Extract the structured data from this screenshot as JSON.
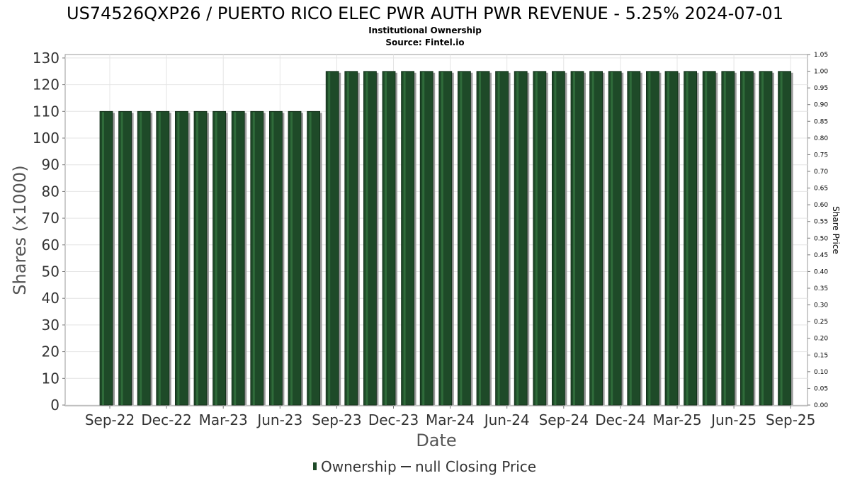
{
  "chart_data": {
    "type": "bar",
    "title": "US74526QXP26 / PUERTO RICO ELEC PWR AUTH PWR REVENUE - 5.25% 2024-07-01",
    "subtitle": "Institutional Ownership",
    "source": "Source: Fintel.io",
    "xlabel": "Date",
    "ylabel": "Shares (x1000)",
    "ylabel_right": "Share Price",
    "ylim": [
      0,
      130
    ],
    "y_ticks": [
      "0",
      "10",
      "20",
      "30",
      "40",
      "50",
      "60",
      "70",
      "80",
      "90",
      "100",
      "110",
      "120",
      "130"
    ],
    "ylim_right": [
      0,
      1.05
    ],
    "y_ticks_right": [
      "0.00",
      "0.05",
      "0.10",
      "0.15",
      "0.20",
      "0.25",
      "0.30",
      "0.35",
      "0.40",
      "0.45",
      "0.50",
      "0.55",
      "0.60",
      "0.65",
      "0.70",
      "0.75",
      "0.80",
      "0.85",
      "0.90",
      "0.95",
      "1.00",
      "1.05"
    ],
    "x_ticks": [
      "Sep-22",
      "Dec-22",
      "Mar-23",
      "Jun-23",
      "Sep-23",
      "Dec-23",
      "Mar-24",
      "Jun-24",
      "Sep-24",
      "Dec-24",
      "Mar-25",
      "Jun-25",
      "Sep-25"
    ],
    "grid": true,
    "legend_position": "bottom",
    "series": [
      {
        "name": "Ownership",
        "color": "#1e4a28",
        "values": [
          110,
          110,
          110,
          110,
          110,
          110,
          110,
          110,
          110,
          110,
          110,
          110,
          125,
          125,
          125,
          125,
          125,
          125,
          125,
          125,
          125,
          125,
          125,
          125,
          125,
          125,
          125,
          125,
          125,
          125,
          125,
          125,
          125,
          125,
          125,
          125,
          125
        ]
      },
      {
        "name": "null Closing Price",
        "color": "#333333",
        "values": []
      }
    ]
  }
}
